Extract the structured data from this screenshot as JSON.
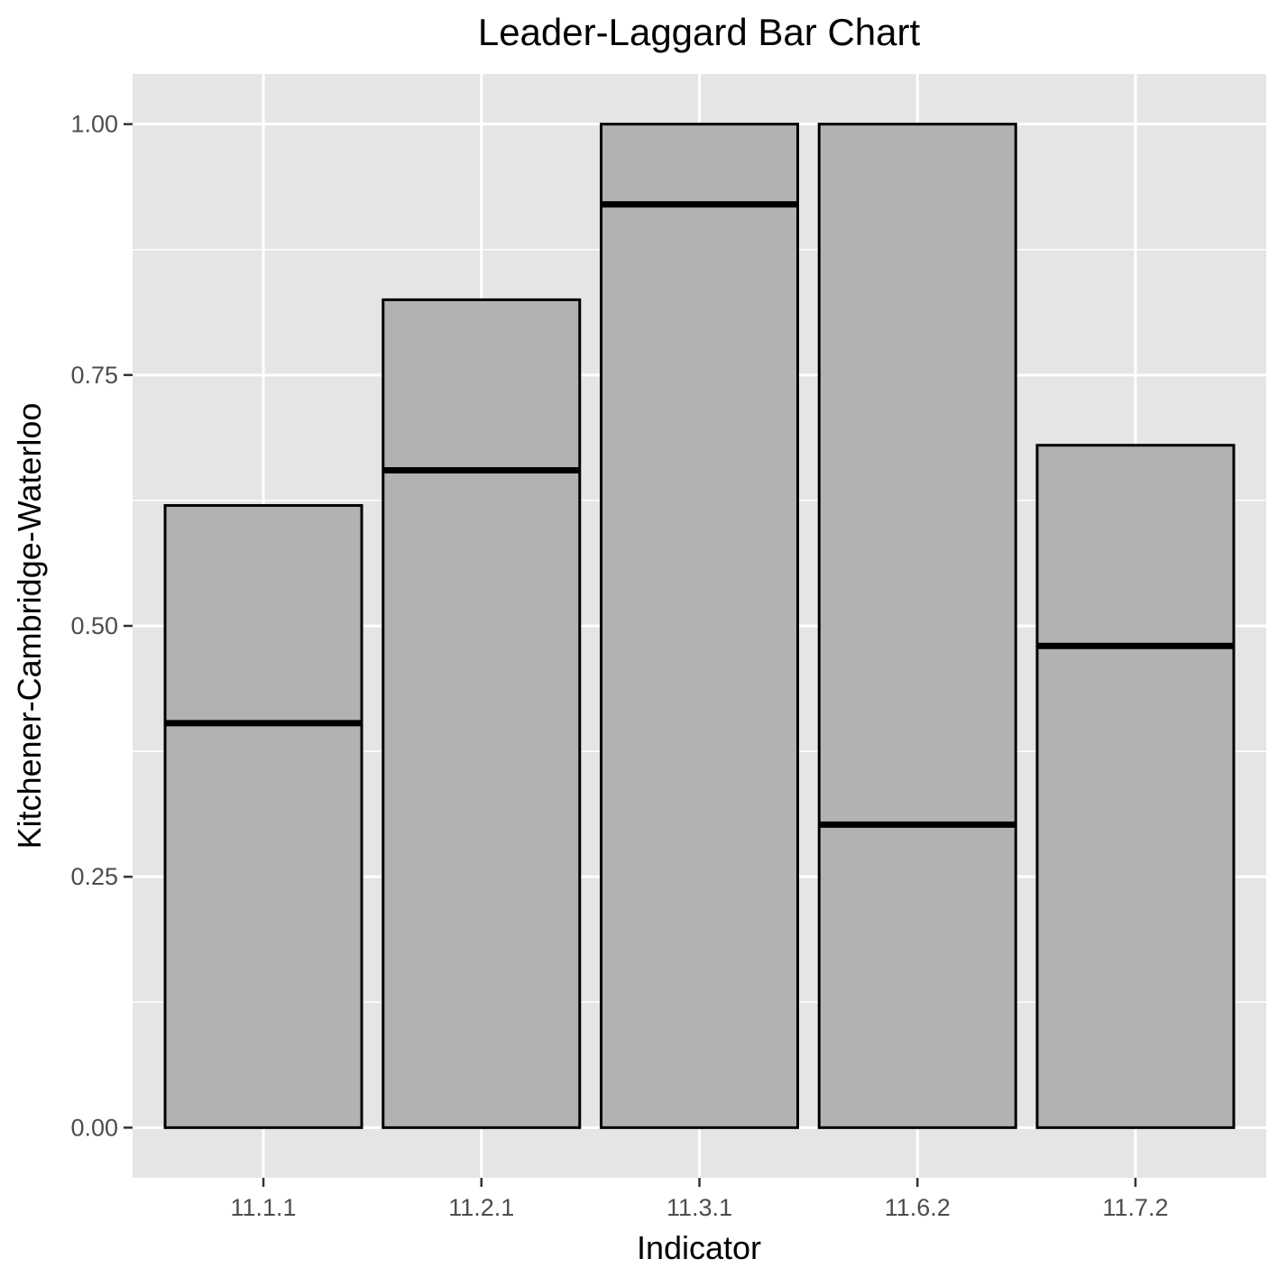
{
  "chart_data": {
    "type": "bar",
    "title": "Leader-Laggard Bar Chart",
    "xlabel": "Indicator",
    "ylabel": "Kitchener-Cambridge-Waterloo",
    "categories": [
      "11.1.1",
      "11.2.1",
      "11.3.1",
      "11.6.2",
      "11.7.2"
    ],
    "values": [
      0.62,
      0.825,
      1.0,
      1.0,
      0.68
    ],
    "markers": [
      0.403,
      0.655,
      0.92,
      0.302,
      0.48
    ],
    "ylim": [
      -0.05,
      1.05
    ],
    "yticks": [
      0.0,
      0.25,
      0.5,
      0.75,
      1.0
    ],
    "ytick_labels": [
      "0.00",
      "0.25",
      "0.50",
      "0.75",
      "1.00"
    ],
    "grid": true,
    "colors": {
      "panel": "#e5e5e5",
      "grid": "#ffffff",
      "bar_fill": "#b2b2b2",
      "bar_stroke": "#000000",
      "marker": "#000000"
    }
  }
}
